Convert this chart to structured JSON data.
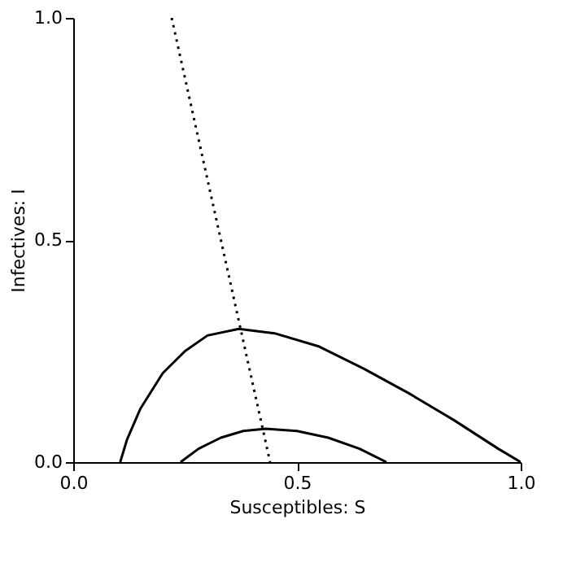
{
  "chart_data": {
    "type": "line",
    "xlabel": "Susceptibles: S",
    "ylabel": "Infectives: I",
    "xlim": [
      0,
      1
    ],
    "ylim": [
      0,
      1
    ],
    "xticks": [
      {
        "value": 0,
        "label": "0.0"
      },
      {
        "value": 0.5,
        "label": "0.5"
      },
      {
        "value": 1,
        "label": "1.0"
      }
    ],
    "yticks": [
      {
        "value": 0,
        "label": "0.0"
      },
      {
        "value": 0.5,
        "label": "0.5"
      },
      {
        "value": 1,
        "label": "1.0"
      }
    ],
    "grid": false,
    "series": [
      {
        "color": "#000000",
        "line_style": "solid",
        "x": [
          0.105,
          0.12,
          0.15,
          0.2,
          0.25,
          0.3,
          0.37,
          0.45,
          0.55,
          0.65,
          0.75,
          0.85,
          0.95,
          1.0
        ],
        "values": [
          0,
          0.05,
          0.12,
          0.2,
          0.25,
          0.285,
          0.3,
          0.29,
          0.26,
          0.21,
          0.155,
          0.095,
          0.03,
          0
        ]
      },
      {
        "color": "#000000",
        "line_style": "solid",
        "x": [
          0.24,
          0.28,
          0.33,
          0.38,
          0.43,
          0.5,
          0.57,
          0.64,
          0.7
        ],
        "values": [
          0,
          0.03,
          0.055,
          0.07,
          0.075,
          0.07,
          0.055,
          0.03,
          0
        ]
      },
      {
        "color": "#000000",
        "line_style": "dotted",
        "x": [
          0.22,
          0.44
        ],
        "values": [
          1.0,
          0
        ]
      }
    ]
  }
}
